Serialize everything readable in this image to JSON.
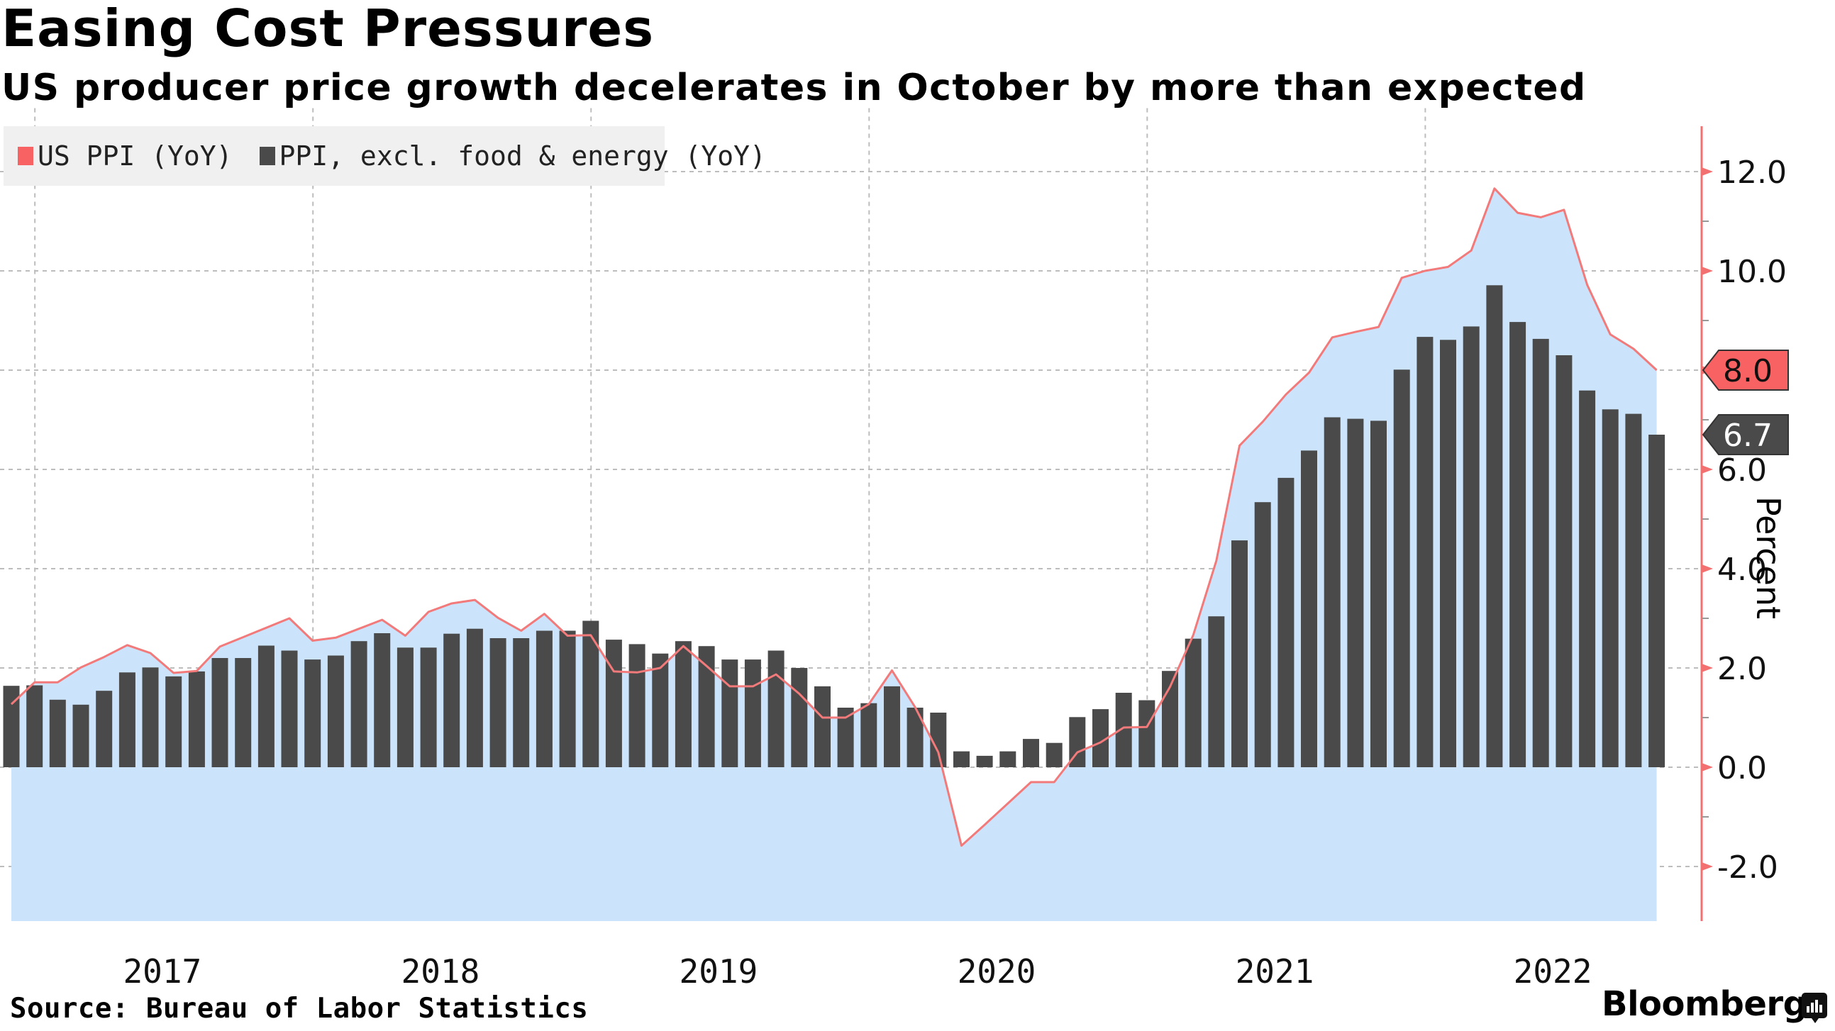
{
  "header": {
    "title": "Easing Cost Pressures",
    "subtitle": "US producer price growth decelerates in October by more than expected"
  },
  "legend": {
    "items": [
      {
        "label": "US PPI (YoY)",
        "color": "#f96262"
      },
      {
        "label": "PPI, excl. food & energy (YoY)",
        "color": "#4a4a4a"
      }
    ]
  },
  "footer": {
    "source": "Source: Bureau of Labor Statistics",
    "brand": "Bloomberg"
  },
  "colors": {
    "area_fill": "#cce4fb",
    "line": "#f27a7a",
    "bar": "#4a4a4a",
    "axis": "#f27070",
    "grid": "#bdbdbd"
  },
  "chart_data": {
    "type": "bar",
    "title": "Easing Cost Pressures",
    "subtitle": "US producer price growth decelerates in October by more than expected",
    "xlabel": "",
    "ylabel": "Percent",
    "ylim": [
      -3.1,
      12.85
    ],
    "yticks": [
      -2.0,
      0.0,
      2.0,
      4.0,
      6.0,
      8.0,
      10.0,
      12.0
    ],
    "ytick_labels": [
      "-2.0",
      "0.0",
      "2.0",
      "4.0",
      "6.0",
      "8.0",
      "10.0",
      "12.0"
    ],
    "y_axis_side": "right",
    "grid": true,
    "legend_position": "top-left",
    "x_start": "2016-11",
    "x_end": "2022-10",
    "frequency": "monthly",
    "year_labels": [
      "2017",
      "2018",
      "2019",
      "2020",
      "2021",
      "2022"
    ],
    "last_value_labels": [
      {
        "series": "US PPI (YoY)",
        "label": "8.0",
        "value": 8.0
      },
      {
        "series": "PPI, excl. food & energy (YoY)",
        "label": "6.7",
        "value": 6.7
      }
    ],
    "series": [
      {
        "name": "US PPI (YoY)",
        "type": "area-line",
        "values": [
          1.27,
          1.71,
          1.71,
          2.01,
          2.22,
          2.46,
          2.3,
          1.9,
          1.94,
          2.43,
          2.62,
          2.81,
          3.0,
          2.55,
          2.61,
          2.79,
          2.97,
          2.65,
          3.13,
          3.3,
          3.37,
          3.01,
          2.75,
          3.09,
          2.65,
          2.66,
          1.93,
          1.91,
          2.0,
          2.44,
          2.04,
          1.63,
          1.63,
          1.87,
          1.48,
          1.0,
          1.0,
          1.27,
          1.95,
          1.21,
          0.3,
          -1.58,
          -1.16,
          -0.73,
          -0.3,
          -0.3,
          0.3,
          0.5,
          0.8,
          0.81,
          1.62,
          2.66,
          4.16,
          6.48,
          6.96,
          7.51,
          7.95,
          8.66,
          8.77,
          8.87,
          9.86,
          10.0,
          10.08,
          10.41,
          11.66,
          11.17,
          11.08,
          11.23,
          9.72,
          8.72,
          8.43,
          8.0
        ]
      },
      {
        "name": "PPI, excl. food & energy (YoY)",
        "type": "bar",
        "values": [
          1.64,
          1.65,
          1.36,
          1.26,
          1.54,
          1.91,
          2.01,
          1.83,
          1.93,
          2.2,
          2.2,
          2.45,
          2.35,
          2.17,
          2.25,
          2.54,
          2.7,
          2.41,
          2.41,
          2.69,
          2.79,
          2.6,
          2.6,
          2.75,
          2.75,
          2.95,
          2.57,
          2.48,
          2.29,
          2.54,
          2.44,
          2.17,
          2.17,
          2.35,
          2.0,
          1.63,
          1.2,
          1.29,
          1.63,
          1.2,
          1.1,
          0.32,
          0.23,
          0.32,
          0.57,
          0.49,
          1.01,
          1.17,
          1.5,
          1.35,
          1.94,
          2.59,
          3.04,
          4.57,
          5.34,
          5.83,
          6.38,
          7.05,
          7.02,
          6.98,
          8.01,
          8.67,
          8.61,
          8.88,
          9.71,
          8.97,
          8.63,
          8.3,
          7.59,
          7.21,
          7.12,
          6.7
        ]
      }
    ]
  }
}
